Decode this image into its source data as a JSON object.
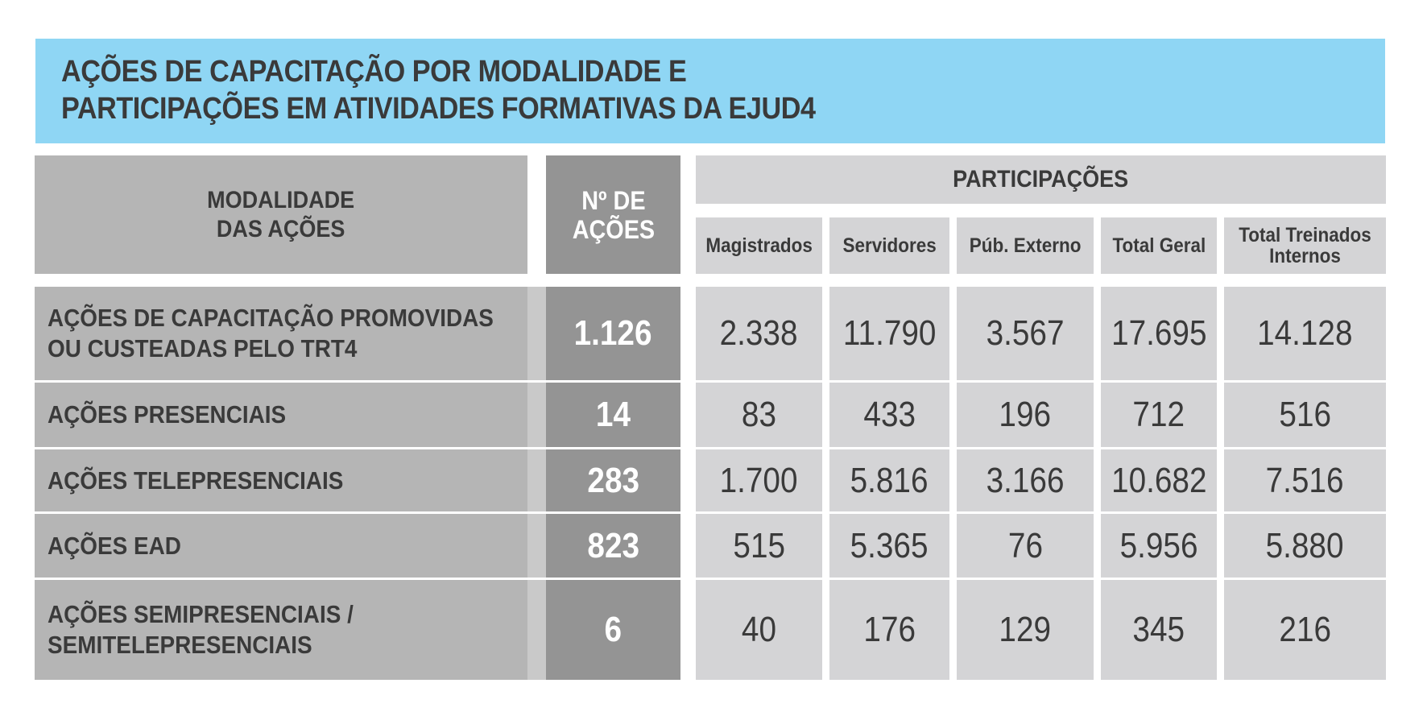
{
  "title": {
    "line1": "AÇÕES DE CAPACITAÇÃO POR MODALIDADE E",
    "line2": "PARTICIPAÇÕES EM ATIVIDADES FORMATIVAS DA EJUD4"
  },
  "colors": {
    "title_bg": "#8fd6f4",
    "label_bg": "#b5b5b5",
    "count_bg": "#949494",
    "value_bg": "#d4d4d6"
  },
  "chart_data": {
    "type": "table",
    "title": "AÇÕES DE CAPACITAÇÃO POR MODALIDADE E PARTICIPAÇÕES EM ATIVIDADES FORMATIVAS DA EJUD4",
    "header": {
      "modalidade_line1": "MODALIDADE",
      "modalidade_line2": "DAS AÇÕES",
      "num_line1": "Nº DE",
      "num_line2": "AÇÕES",
      "participacoes": "PARTICIPAÇÕES",
      "columns": [
        "Magistrados",
        "Servidores",
        "Púb. Externo",
        "Total Geral",
        "Total Treinados Internos"
      ]
    },
    "rows": [
      {
        "label": "AÇÕES DE CAPACITAÇÃO PROMOVIDAS OU CUSTEADAS PELO TRT4",
        "label_lines": [
          "AÇÕES DE CAPACITAÇÃO PROMOVIDAS",
          "OU CUSTEADAS PELO TRT4"
        ],
        "acoes": "1.126",
        "values": [
          "2.338",
          "11.790",
          "3.567",
          "17.695",
          "14.128"
        ]
      },
      {
        "label": "AÇÕES PRESENCIAIS",
        "label_lines": [
          "AÇÕES PRESENCIAIS"
        ],
        "acoes": "14",
        "values": [
          "83",
          "433",
          "196",
          "712",
          "516"
        ]
      },
      {
        "label": "AÇÕES TELEPRESENCIAIS",
        "label_lines": [
          "AÇÕES TELEPRESENCIAIS"
        ],
        "acoes": "283",
        "values": [
          "1.700",
          "5.816",
          "3.166",
          "10.682",
          "7.516"
        ]
      },
      {
        "label": "AÇÕES EAD",
        "label_lines": [
          "AÇÕES EAD"
        ],
        "acoes": "823",
        "values": [
          "515",
          "5.365",
          "76",
          "5.956",
          "5.880"
        ]
      },
      {
        "label": "AÇÕES SEMIPRESENCIAIS / SEMITELEPRESENCIAIS",
        "label_lines": [
          "AÇÕES SEMIPRESENCIAIS /",
          "SEMITELEPRESENCIAIS"
        ],
        "acoes": "6",
        "values": [
          "40",
          "176",
          "129",
          "345",
          "216"
        ]
      }
    ]
  }
}
